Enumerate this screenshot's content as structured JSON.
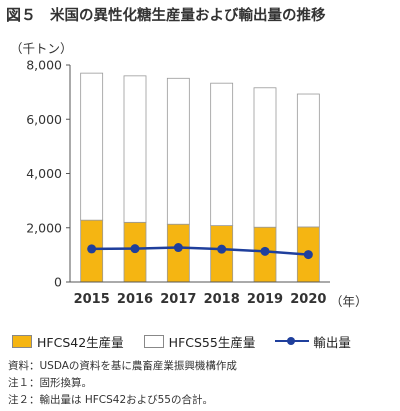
{
  "header": {
    "fig_label": "図５",
    "title": "米国の異性化糖生産量および輸出量の推移"
  },
  "chart_data": {
    "type": "bar",
    "ylabel": "（千トン）",
    "xlabel_suffix": "（年）",
    "ylim": [
      0,
      8000
    ],
    "yticks": [
      "0",
      "2,000",
      "4,000",
      "6,000",
      "8,000"
    ],
    "categories": [
      "2015",
      "2016",
      "2017",
      "2018",
      "2019",
      "2020"
    ],
    "series": [
      {
        "name": "HFCS42生産量",
        "kind": "stacked-bar",
        "color": "#f5b512",
        "values": [
          2280,
          2200,
          2130,
          2080,
          2020,
          2030
        ]
      },
      {
        "name": "HFCS55生産量",
        "kind": "stacked-bar",
        "color": "#ffffff",
        "values": [
          5420,
          5400,
          5380,
          5250,
          5140,
          4900
        ]
      },
      {
        "name": "輸出量",
        "kind": "line",
        "color": "#1f3f9c",
        "values": [
          1220,
          1230,
          1270,
          1210,
          1130,
          1010
        ]
      }
    ],
    "grid": false,
    "legend_position": "bottom"
  },
  "notes": [
    "資料：USDAの資料を基に農畜産業振興機構作成",
    "注１：固形換算。",
    "注２：輸出量は HFCS42および55の合計。"
  ]
}
